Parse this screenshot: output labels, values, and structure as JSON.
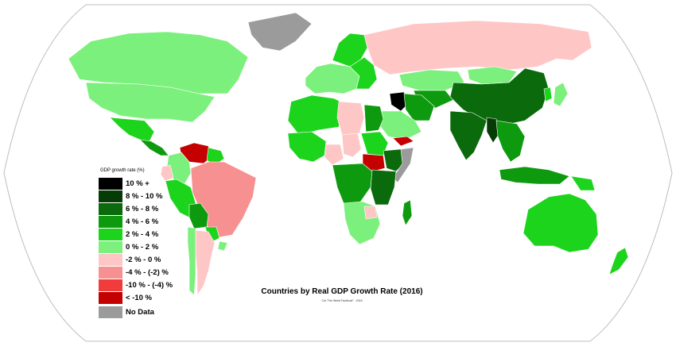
{
  "colors": {
    "ocean": "#ffffff",
    "border": "#ffffff",
    "outline": "#bdbdbd"
  },
  "legend": {
    "title": "GDP growth rate (%)",
    "items": [
      {
        "label": "10 % +",
        "color": "#000000"
      },
      {
        "label": "8 % - 10 %",
        "color": "#053b05"
      },
      {
        "label": "6 % - 8 %",
        "color": "#0b6a0b"
      },
      {
        "label": "4 % - 6 %",
        "color": "#0e9a0e"
      },
      {
        "label": "2 % - 4 %",
        "color": "#1dd41d"
      },
      {
        "label": "0 % - 2 %",
        "color": "#7cf07c"
      },
      {
        "label": "-2 % - 0 %",
        "color": "#ffc6c6"
      },
      {
        "label": "-4 % - (-2) %",
        "color": "#f79090"
      },
      {
        "label": "-10 % - (-4) %",
        "color": "#f23b3b"
      },
      {
        "label": "< -10 %",
        "color": "#c40000"
      }
    ],
    "no_data": {
      "label": "No Data",
      "color": "#9b9b9b"
    }
  },
  "title": "Countries by Real GDP Growth Rate (2016)",
  "credit": "Cia \"The World Factbook\" · 2016",
  "regions": [
    {
      "name": "greenland",
      "cls": "nodata"
    },
    {
      "name": "canada",
      "cls": "c0_2"
    },
    {
      "name": "usa",
      "cls": "c0_2"
    },
    {
      "name": "mexico",
      "cls": "c2_4"
    },
    {
      "name": "central-america",
      "cls": "c4_6"
    },
    {
      "name": "venezuela",
      "cls": "cneg10"
    },
    {
      "name": "colombia",
      "cls": "c0_2"
    },
    {
      "name": "guyana",
      "cls": "c2_4"
    },
    {
      "name": "peru",
      "cls": "c2_4"
    },
    {
      "name": "ecuador",
      "cls": "cneg2_0"
    },
    {
      "name": "brazil",
      "cls": "cneg4_2"
    },
    {
      "name": "bolivia",
      "cls": "c4_6"
    },
    {
      "name": "paraguay",
      "cls": "c2_4"
    },
    {
      "name": "argentina",
      "cls": "cneg2_0"
    },
    {
      "name": "chile",
      "cls": "c0_2"
    },
    {
      "name": "uruguay",
      "cls": "c0_2"
    },
    {
      "name": "western-europe",
      "cls": "c0_2"
    },
    {
      "name": "scandinavia",
      "cls": "c2_4"
    },
    {
      "name": "eastern-europe",
      "cls": "c2_4"
    },
    {
      "name": "russia",
      "cls": "cneg2_0"
    },
    {
      "name": "kazakhstan",
      "cls": "c0_2"
    },
    {
      "name": "north-africa",
      "cls": "c2_4"
    },
    {
      "name": "libya",
      "cls": "cneg2_0"
    },
    {
      "name": "egypt",
      "cls": "c4_6"
    },
    {
      "name": "west-africa",
      "cls": "c2_4"
    },
    {
      "name": "nigeria",
      "cls": "cneg2_0"
    },
    {
      "name": "chad",
      "cls": "cneg2_0"
    },
    {
      "name": "sudan",
      "cls": "c2_4"
    },
    {
      "name": "south-sudan",
      "cls": "cneg10"
    },
    {
      "name": "ethiopia",
      "cls": "c6_8"
    },
    {
      "name": "somalia",
      "cls": "nodata"
    },
    {
      "name": "central-africa",
      "cls": "c4_6"
    },
    {
      "name": "east-africa",
      "cls": "c6_8"
    },
    {
      "name": "southern-africa",
      "cls": "c0_2"
    },
    {
      "name": "zimbabwe",
      "cls": "cneg2_0"
    },
    {
      "name": "madagascar",
      "cls": "c4_6"
    },
    {
      "name": "saudi-arabia",
      "cls": "c0_2"
    },
    {
      "name": "yemen",
      "cls": "cneg10"
    },
    {
      "name": "iraq",
      "cls": "c10"
    },
    {
      "name": "iran",
      "cls": "c4_6"
    },
    {
      "name": "central-asia",
      "cls": "c4_6"
    },
    {
      "name": "mongolia",
      "cls": "c0_2"
    },
    {
      "name": "china",
      "cls": "c6_8"
    },
    {
      "name": "india",
      "cls": "c6_8"
    },
    {
      "name": "myanmar",
      "cls": "c8_10"
    },
    {
      "name": "southeast-asia",
      "cls": "c4_6"
    },
    {
      "name": "japan",
      "cls": "c0_2"
    },
    {
      "name": "korea",
      "cls": "c2_4"
    },
    {
      "name": "indonesia",
      "cls": "c4_6"
    },
    {
      "name": "papua-new-guinea",
      "cls": "c2_4"
    },
    {
      "name": "australia",
      "cls": "c2_4"
    },
    {
      "name": "new-zealand",
      "cls": "c2_4"
    }
  ]
}
